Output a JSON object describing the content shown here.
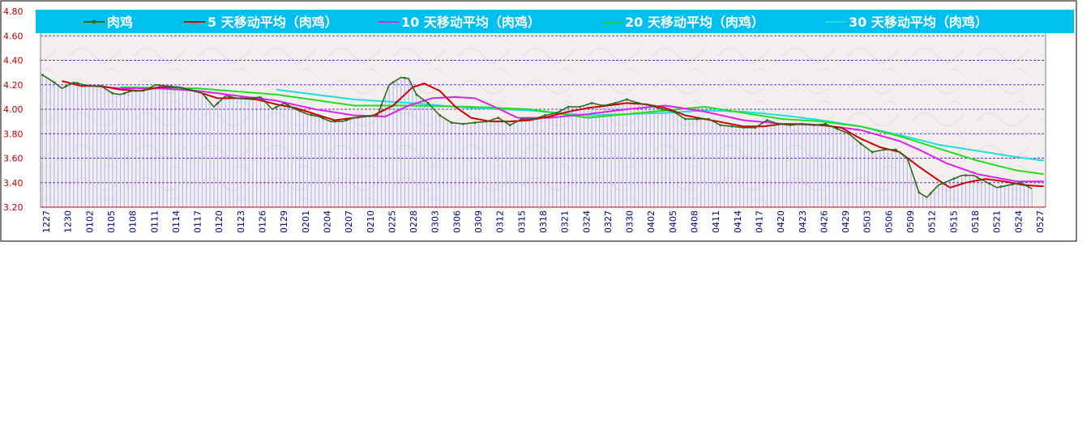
{
  "chart_data": {
    "type": "line",
    "title": "",
    "xlabel": "",
    "ylabel": "",
    "ylim": [
      3.2,
      4.8
    ],
    "y_ticks": [
      "3.20",
      "3.40",
      "3.60",
      "3.80",
      "4.00",
      "4.20",
      "4.40",
      "4.60",
      "4.80"
    ],
    "grid": "horizontal dotted",
    "legend_position": "top",
    "x_tick_labels": [
      "1227",
      "1230",
      "0102",
      "0105",
      "0108",
      "0111",
      "0114",
      "0117",
      "0120",
      "0123",
      "0126",
      "0129",
      "0201",
      "0204",
      "0207",
      "0210",
      "0225",
      "0228",
      "0303",
      "0306",
      "0309",
      "0312",
      "0315",
      "0318",
      "0321",
      "0324",
      "0327",
      "0330",
      "0402",
      "0405",
      "0408",
      "0411",
      "0414",
      "0417",
      "0420",
      "0423",
      "0426",
      "0429",
      "0503",
      "0506",
      "0509",
      "0512",
      "0515",
      "0518",
      "0521",
      "0524",
      "0527"
    ],
    "colors": {
      "legend_bg": "#00c0f0",
      "plot_bg": "#f5f0f0",
      "grid": "#6633cc",
      "bars": "#b8b8f0",
      "axis_text_y": "#c00000",
      "axis_text_x": "#000080"
    },
    "series": [
      {
        "name": "肉鸡",
        "color": "#2e6b1e",
        "keys": [
          [
            0,
            4.28
          ],
          [
            3,
            4.22
          ],
          [
            5,
            4.17
          ],
          [
            8,
            4.22
          ],
          [
            12,
            4.19
          ],
          [
            15,
            4.19
          ],
          [
            18,
            4.13
          ],
          [
            20,
            4.12
          ],
          [
            23,
            4.15
          ],
          [
            26,
            4.15
          ],
          [
            29,
            4.2
          ],
          [
            32,
            4.19
          ],
          [
            35,
            4.18
          ],
          [
            38,
            4.16
          ],
          [
            41,
            4.13
          ],
          [
            44,
            4.02
          ],
          [
            47,
            4.11
          ],
          [
            50,
            4.09
          ],
          [
            53,
            4.09
          ],
          [
            56,
            4.1
          ],
          [
            59,
            4.0
          ],
          [
            62,
            4.05
          ],
          [
            65,
            4.0
          ],
          [
            68,
            3.96
          ],
          [
            71,
            3.94
          ],
          [
            74,
            3.9
          ],
          [
            77,
            3.9
          ],
          [
            80,
            3.93
          ],
          [
            83,
            3.94
          ],
          [
            86,
            3.95
          ],
          [
            89,
            4.2
          ],
          [
            92,
            4.26
          ],
          [
            94,
            4.25
          ],
          [
            96,
            4.12
          ],
          [
            99,
            4.05
          ],
          [
            102,
            3.95
          ],
          [
            105,
            3.89
          ],
          [
            108,
            3.88
          ],
          [
            111,
            3.89
          ],
          [
            114,
            3.9
          ],
          [
            117,
            3.93
          ],
          [
            120,
            3.87
          ],
          [
            123,
            3.92
          ],
          [
            126,
            3.92
          ],
          [
            129,
            3.95
          ],
          [
            132,
            3.97
          ],
          [
            135,
            4.02
          ],
          [
            138,
            4.02
          ],
          [
            141,
            4.05
          ],
          [
            144,
            4.03
          ],
          [
            147,
            4.05
          ],
          [
            150,
            4.08
          ],
          [
            153,
            4.05
          ],
          [
            156,
            4.03
          ],
          [
            159,
            4.0
          ],
          [
            162,
            3.98
          ],
          [
            165,
            3.92
          ],
          [
            168,
            3.92
          ],
          [
            171,
            3.92
          ],
          [
            174,
            3.87
          ],
          [
            177,
            3.86
          ],
          [
            180,
            3.85
          ],
          [
            183,
            3.85
          ],
          [
            186,
            3.91
          ],
          [
            189,
            3.88
          ],
          [
            192,
            3.87
          ],
          [
            195,
            3.88
          ],
          [
            198,
            3.87
          ],
          [
            201,
            3.88
          ],
          [
            204,
            3.84
          ],
          [
            207,
            3.8
          ],
          [
            210,
            3.72
          ],
          [
            213,
            3.65
          ],
          [
            216,
            3.67
          ],
          [
            219,
            3.67
          ],
          [
            222,
            3.6
          ],
          [
            225,
            3.32
          ],
          [
            227,
            3.28
          ],
          [
            230,
            3.38
          ],
          [
            233,
            3.42
          ],
          [
            236,
            3.46
          ],
          [
            239,
            3.46
          ],
          [
            242,
            3.41
          ],
          [
            245,
            3.36
          ],
          [
            248,
            3.38
          ],
          [
            251,
            3.4
          ],
          [
            254,
            3.35
          ]
        ]
      },
      {
        "name": "5 天移动平均（肉鸡）",
        "color": "#cc0000",
        "keys": [
          [
            5,
            4.23
          ],
          [
            10,
            4.19
          ],
          [
            15,
            4.19
          ],
          [
            20,
            4.16
          ],
          [
            25,
            4.15
          ],
          [
            30,
            4.18
          ],
          [
            35,
            4.18
          ],
          [
            40,
            4.14
          ],
          [
            45,
            4.09
          ],
          [
            50,
            4.09
          ],
          [
            55,
            4.08
          ],
          [
            60,
            4.04
          ],
          [
            65,
            4.01
          ],
          [
            70,
            3.96
          ],
          [
            75,
            3.91
          ],
          [
            80,
            3.93
          ],
          [
            85,
            3.95
          ],
          [
            90,
            4.03
          ],
          [
            95,
            4.18
          ],
          [
            98,
            4.21
          ],
          [
            102,
            4.15
          ],
          [
            106,
            4.02
          ],
          [
            110,
            3.93
          ],
          [
            115,
            3.9
          ],
          [
            120,
            3.9
          ],
          [
            125,
            3.91
          ],
          [
            130,
            3.94
          ],
          [
            135,
            3.98
          ],
          [
            140,
            4.01
          ],
          [
            145,
            4.03
          ],
          [
            150,
            4.05
          ],
          [
            155,
            4.04
          ],
          [
            160,
            4.01
          ],
          [
            165,
            3.95
          ],
          [
            170,
            3.92
          ],
          [
            175,
            3.89
          ],
          [
            180,
            3.86
          ],
          [
            185,
            3.86
          ],
          [
            190,
            3.88
          ],
          [
            195,
            3.88
          ],
          [
            200,
            3.87
          ],
          [
            205,
            3.85
          ],
          [
            210,
            3.76
          ],
          [
            215,
            3.69
          ],
          [
            220,
            3.65
          ],
          [
            225,
            3.53
          ],
          [
            230,
            3.42
          ],
          [
            233,
            3.36
          ],
          [
            237,
            3.4
          ],
          [
            242,
            3.43
          ],
          [
            247,
            3.41
          ],
          [
            252,
            3.38
          ],
          [
            257,
            3.37
          ]
        ]
      },
      {
        "name": "10 天移动平均（肉鸡）",
        "color": "#dd22ee",
        "keys": [
          [
            10,
            4.2
          ],
          [
            20,
            4.17
          ],
          [
            30,
            4.17
          ],
          [
            40,
            4.15
          ],
          [
            50,
            4.11
          ],
          [
            60,
            4.07
          ],
          [
            70,
            4.0
          ],
          [
            80,
            3.95
          ],
          [
            88,
            3.94
          ],
          [
            94,
            4.03
          ],
          [
            100,
            4.09
          ],
          [
            106,
            4.1
          ],
          [
            111,
            4.09
          ],
          [
            116,
            4.02
          ],
          [
            122,
            3.93
          ],
          [
            130,
            3.93
          ],
          [
            140,
            3.96
          ],
          [
            150,
            4.0
          ],
          [
            160,
            4.03
          ],
          [
            170,
            3.98
          ],
          [
            180,
            3.91
          ],
          [
            190,
            3.88
          ],
          [
            200,
            3.87
          ],
          [
            210,
            3.83
          ],
          [
            220,
            3.74
          ],
          [
            225,
            3.67
          ],
          [
            232,
            3.56
          ],
          [
            240,
            3.47
          ],
          [
            250,
            3.41
          ],
          [
            257,
            3.41
          ]
        ]
      },
      {
        "name": "20 天移动平均（肉鸡）",
        "color": "#22dd22",
        "keys": [
          [
            20,
            4.18
          ],
          [
            40,
            4.17
          ],
          [
            60,
            4.12
          ],
          [
            80,
            4.03
          ],
          [
            95,
            4.03
          ],
          [
            110,
            4.02
          ],
          [
            125,
            4.0
          ],
          [
            140,
            3.93
          ],
          [
            160,
            3.99
          ],
          [
            170,
            4.02
          ],
          [
            180,
            3.97
          ],
          [
            190,
            3.92
          ],
          [
            200,
            3.9
          ],
          [
            210,
            3.86
          ],
          [
            220,
            3.78
          ],
          [
            230,
            3.68
          ],
          [
            240,
            3.58
          ],
          [
            250,
            3.5
          ],
          [
            257,
            3.47
          ]
        ]
      },
      {
        "name": "30 天移动平均（肉鸡）",
        "color": "#22dddd",
        "keys": [
          [
            60,
            4.16
          ],
          [
            80,
            4.08
          ],
          [
            95,
            4.05
          ],
          [
            110,
            4.01
          ],
          [
            125,
            3.99
          ],
          [
            140,
            3.95
          ],
          [
            160,
            3.97
          ],
          [
            170,
            3.99
          ],
          [
            180,
            3.98
          ],
          [
            190,
            3.95
          ],
          [
            200,
            3.91
          ],
          [
            210,
            3.86
          ],
          [
            220,
            3.79
          ],
          [
            230,
            3.71
          ],
          [
            240,
            3.66
          ],
          [
            250,
            3.61
          ],
          [
            257,
            3.58
          ]
        ]
      }
    ]
  }
}
